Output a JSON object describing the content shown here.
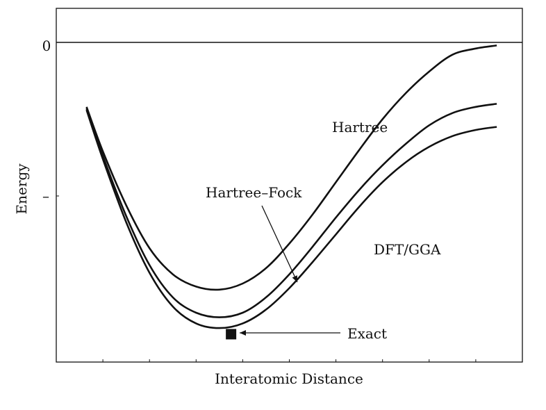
{
  "chart_data": {
    "type": "line",
    "xlabel": "Interatomic Distance",
    "ylabel": "Energy",
    "yticks": [
      {
        "value": 0,
        "label": "0"
      },
      {
        "value": -1,
        "label": "–"
      }
    ],
    "xlim": [
      0,
      10
    ],
    "ylim": [
      -2.1,
      0.05
    ],
    "grid": false,
    "series": [
      {
        "name": "Hartree",
        "x": [
          0.65,
          1.0,
          1.5,
          2.0,
          2.5,
          3.0,
          3.5,
          4.0,
          4.5,
          5.0,
          5.5,
          6.0,
          6.5,
          7.0,
          7.5,
          8.0,
          8.5,
          9.0,
          9.45
        ],
        "y": [
          -0.42,
          -0.71,
          -1.06,
          -1.34,
          -1.51,
          -1.59,
          -1.61,
          -1.57,
          -1.47,
          -1.31,
          -1.12,
          -0.91,
          -0.7,
          -0.5,
          -0.33,
          -0.19,
          -0.08,
          -0.04,
          -0.02
        ]
      },
      {
        "name": "Hartree–Fock",
        "x": [
          0.65,
          1.0,
          1.5,
          2.0,
          2.5,
          3.0,
          3.5,
          4.0,
          4.5,
          5.0,
          5.5,
          6.0,
          6.5,
          7.0,
          7.5,
          8.0,
          8.5,
          9.0,
          9.45
        ],
        "y": [
          -0.43,
          -0.74,
          -1.13,
          -1.45,
          -1.66,
          -1.76,
          -1.79,
          -1.76,
          -1.66,
          -1.51,
          -1.33,
          -1.14,
          -0.96,
          -0.8,
          -0.66,
          -0.54,
          -0.46,
          -0.42,
          -0.4
        ]
      },
      {
        "name": "DFT/GGA",
        "x": [
          0.65,
          1.0,
          1.5,
          2.0,
          2.5,
          3.0,
          3.5,
          4.0,
          4.5,
          5.0,
          5.5,
          6.0,
          6.5,
          7.0,
          7.5,
          8.0,
          8.5,
          9.0,
          9.45
        ],
        "y": [
          -0.44,
          -0.76,
          -1.17,
          -1.5,
          -1.72,
          -1.83,
          -1.86,
          -1.83,
          -1.74,
          -1.6,
          -1.43,
          -1.25,
          -1.07,
          -0.91,
          -0.78,
          -0.68,
          -0.61,
          -0.57,
          -0.55
        ]
      }
    ],
    "points": [
      {
        "name": "Exact",
        "x": 3.75,
        "y": -1.9
      }
    ],
    "annotations": [
      {
        "text": "Hartree",
        "x": 6.0,
        "y": -0.55
      },
      {
        "text": "Hartree–Fock",
        "x": 4.3,
        "y": -0.98
      },
      {
        "text": "DFT/GGA",
        "x": 7.3,
        "y": -1.35
      },
      {
        "text": "Exact",
        "x": 6.3,
        "y": -1.9
      }
    ]
  }
}
